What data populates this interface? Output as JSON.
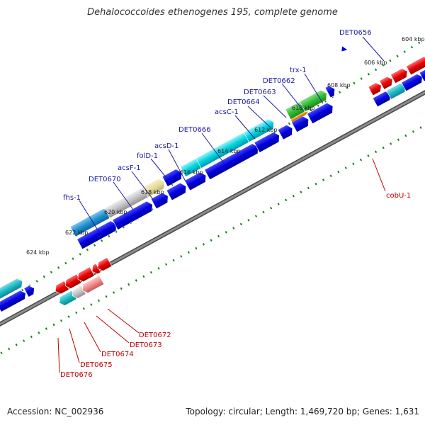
{
  "header": {
    "title": "Dehalococcoides ethenogenes 195, complete genome"
  },
  "footer": {
    "accession": "Accession: NC_002936",
    "summary": "Topology: circular; Length: 1,469,720 bp; Genes: 1,631"
  },
  "map": {
    "positions": [
      {
        "text": "604 kbp"
      },
      {
        "text": "606 kbp"
      },
      {
        "text": "608 kbp"
      },
      {
        "text": "610 kbp"
      },
      {
        "text": "612 kbp"
      },
      {
        "text": "614 kbp"
      },
      {
        "text": "616 kbp"
      },
      {
        "text": "618 kbp"
      },
      {
        "text": "620 kbp"
      },
      {
        "text": "622 kbp"
      },
      {
        "text": "624 kbp"
      }
    ],
    "forward_genes": [
      {
        "text": "DET0656"
      },
      {
        "text": "trx-1"
      },
      {
        "text": "DET0662"
      },
      {
        "text": "DET0663"
      },
      {
        "text": "DET0664"
      },
      {
        "text": "acsC-1"
      },
      {
        "text": "DET0666"
      },
      {
        "text": "acsD-1"
      },
      {
        "text": "folD-1"
      },
      {
        "text": "acsF-1"
      },
      {
        "text": "DET0670"
      },
      {
        "text": "fhs-1"
      }
    ],
    "reverse_genes": [
      {
        "text": "cobU-1"
      },
      {
        "text": "DET0672"
      },
      {
        "text": "DET0673"
      },
      {
        "text": "DET0674"
      },
      {
        "text": "DET0675"
      },
      {
        "text": "DET0676"
      }
    ],
    "colors": {
      "backbone": "#808080",
      "forward_cds": "#0000e0",
      "reverse_cds": "#e00000",
      "cyan_feature": "#00d4e0",
      "green_feature": "#33bb33",
      "orange_feature": "#ee8800",
      "gray_feature": "#c8c8c8",
      "khaki_feature": "#e8e0a0",
      "tick_green": "#118811"
    }
  }
}
